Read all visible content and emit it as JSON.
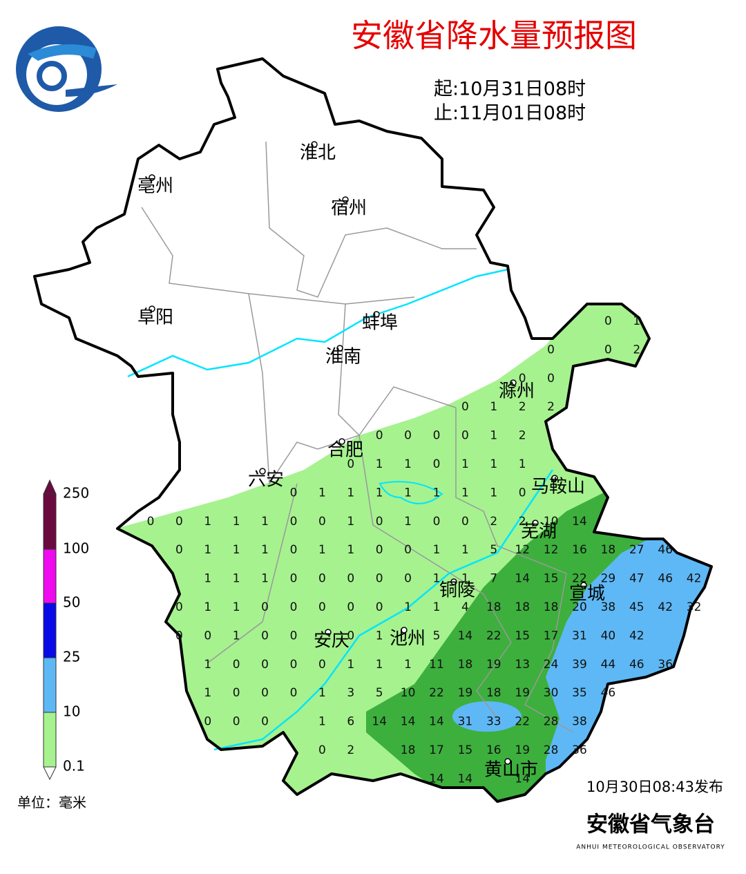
{
  "header": {
    "title": "安徽省降水量预报图",
    "start": "起:10月31日08时",
    "end": "止:11月01日08时"
  },
  "cities": [
    "淮北",
    "亳州",
    "宿州",
    "阜阳",
    "蚌埠",
    "淮南",
    "滁州",
    "合肥",
    "六安",
    "马鞍山",
    "芜湖",
    "铜陵",
    "宣城",
    "安庆",
    "池州",
    "黄山市"
  ],
  "grid": [
    [
      null,
      null,
      null,
      null,
      null,
      null,
      null,
      null,
      null,
      null,
      null,
      null,
      null,
      null,
      null,
      null,
      0,
      1,
      null,
      null
    ],
    [
      null,
      null,
      null,
      null,
      null,
      null,
      null,
      null,
      null,
      null,
      null,
      null,
      null,
      null,
      0,
      null,
      0,
      2,
      null,
      null
    ],
    [
      null,
      null,
      null,
      null,
      null,
      null,
      null,
      null,
      null,
      null,
      null,
      null,
      null,
      0,
      0,
      null,
      null,
      null,
      null,
      null
    ],
    [
      null,
      null,
      null,
      null,
      null,
      null,
      null,
      null,
      null,
      null,
      null,
      0,
      1,
      2,
      2,
      null,
      null,
      null,
      null,
      null
    ],
    [
      null,
      null,
      null,
      null,
      null,
      null,
      null,
      null,
      0,
      0,
      0,
      0,
      1,
      2,
      null,
      null,
      null,
      null,
      null,
      null
    ],
    [
      null,
      null,
      null,
      null,
      null,
      null,
      null,
      0,
      1,
      1,
      0,
      1,
      1,
      1,
      null,
      null,
      null,
      null,
      null,
      null
    ],
    [
      null,
      null,
      null,
      null,
      null,
      0,
      1,
      1,
      1,
      1,
      1,
      1,
      1,
      0,
      null,
      null,
      null,
      null,
      null,
      null
    ],
    [
      0,
      0,
      1,
      1,
      1,
      0,
      0,
      1,
      0,
      1,
      0,
      0,
      2,
      2,
      10,
      14,
      null,
      null,
      null,
      null
    ],
    [
      null,
      0,
      1,
      1,
      1,
      0,
      1,
      1,
      0,
      0,
      1,
      1,
      5,
      12,
      12,
      16,
      18,
      27,
      46,
      null
    ],
    [
      null,
      null,
      1,
      1,
      1,
      0,
      0,
      0,
      0,
      0,
      1,
      1,
      7,
      14,
      15,
      22,
      29,
      47,
      46,
      42
    ],
    [
      null,
      0,
      1,
      1,
      0,
      0,
      0,
      0,
      0,
      1,
      1,
      4,
      18,
      18,
      18,
      20,
      38,
      45,
      42,
      32
    ],
    [
      null,
      0,
      0,
      1,
      0,
      0,
      null,
      0,
      1,
      null,
      5,
      14,
      22,
      15,
      17,
      31,
      40,
      42,
      null,
      null
    ],
    [
      null,
      null,
      1,
      0,
      0,
      0,
      0,
      1,
      1,
      1,
      11,
      18,
      19,
      13,
      24,
      39,
      44,
      46,
      36,
      null
    ],
    [
      null,
      null,
      1,
      0,
      0,
      0,
      1,
      3,
      5,
      10,
      22,
      19,
      18,
      19,
      30,
      35,
      46,
      null,
      null,
      null
    ],
    [
      null,
      null,
      0,
      0,
      0,
      null,
      1,
      6,
      14,
      14,
      14,
      31,
      33,
      22,
      28,
      38,
      null,
      null,
      null,
      null
    ],
    [
      null,
      null,
      null,
      null,
      null,
      null,
      0,
      2,
      null,
      18,
      17,
      15,
      16,
      19,
      28,
      36,
      null,
      null,
      null,
      null
    ],
    [
      null,
      null,
      null,
      null,
      null,
      null,
      null,
      null,
      null,
      null,
      14,
      14,
      null,
      14,
      null,
      null,
      null,
      null,
      null,
      null
    ]
  ],
  "legend": {
    "levels": [
      {
        "value": 250,
        "color": "#6b0a3f"
      },
      {
        "value": 100,
        "color": "#f00af0"
      },
      {
        "value": 50,
        "color": "#0a0ae6"
      },
      {
        "value": 25,
        "color": "#5eb8f5"
      },
      {
        "value": 10,
        "color": "#3daf3d"
      },
      {
        "value": 0.1,
        "color": "#a6f28f"
      }
    ],
    "unit": "单位：毫米"
  },
  "footer": {
    "issued": "10月30日08:43发布",
    "agency": "安徽省气象台",
    "agency_en": "ANHUI METEOROLOGICAL OBSERVATORY"
  }
}
